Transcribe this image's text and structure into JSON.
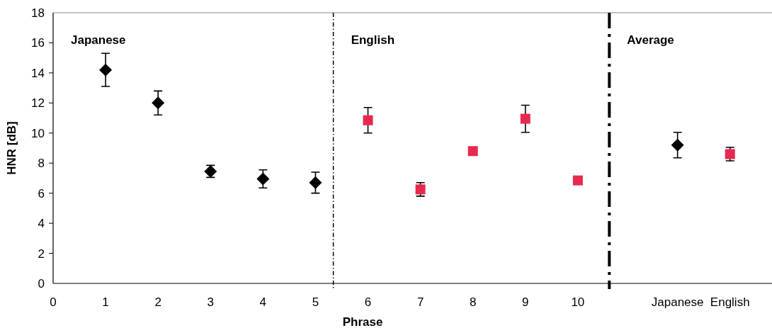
{
  "chart_data": {
    "type": "scatter",
    "xlabel": "Phrase",
    "ylabel": "HNR [dB]",
    "xlim": [
      0,
      13.7
    ],
    "ylim": [
      0,
      18
    ],
    "xticks": [
      0,
      1,
      2,
      3,
      4,
      5,
      6,
      7,
      8,
      9,
      10,
      {
        "value": 11.9,
        "label": "Japanese"
      },
      {
        "value": 12.9,
        "label": "English"
      }
    ],
    "yticks": [
      0,
      2,
      4,
      6,
      8,
      10,
      12,
      14,
      16,
      18
    ],
    "grid": false,
    "series": [
      {
        "color": "#000000",
        "marker": "diamond",
        "x": [
          1,
          2,
          3,
          4,
          5,
          11.9
        ],
        "values": [
          14.2,
          12.0,
          7.45,
          6.95,
          6.7,
          9.2
        ],
        "errors": [
          1.1,
          0.8,
          0.4,
          0.6,
          0.7,
          0.85
        ]
      },
      {
        "color": "#e8294f",
        "marker": "square",
        "x": [
          6,
          7,
          8,
          9,
          10,
          12.9
        ],
        "values": [
          10.85,
          6.25,
          8.8,
          10.95,
          6.85,
          8.6
        ],
        "errors": [
          0.85,
          0.45,
          null,
          0.9,
          null,
          0.45
        ]
      }
    ],
    "ref_lines": [
      {
        "axis": "x",
        "value": 5.34,
        "line_style": "dashdot",
        "color": "#000000"
      },
      {
        "axis": "x",
        "value": 10.6,
        "line_style": "double",
        "color": "#000000"
      }
    ],
    "annotations": [
      "Japanese",
      "English",
      "Average"
    ]
  }
}
